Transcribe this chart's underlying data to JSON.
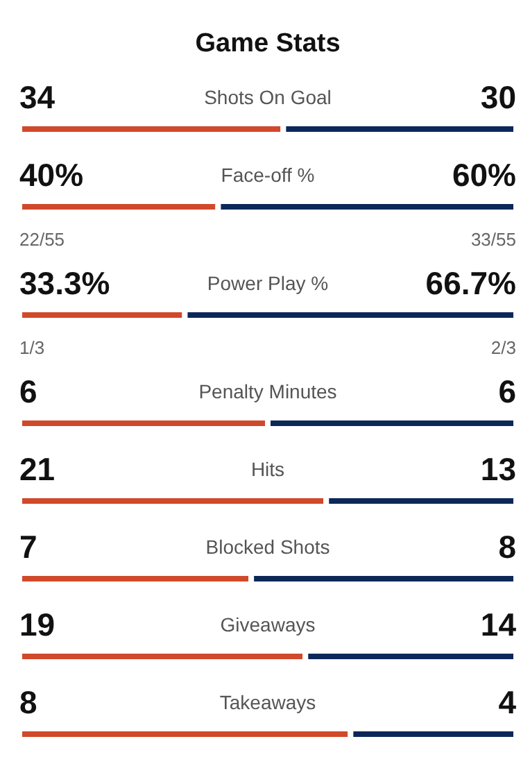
{
  "chart_data": [
    {
      "type": "bar",
      "title": "Game Stats",
      "orientation": "horizontal",
      "stacked": true,
      "tick_labels": false,
      "categories": [
        "Shots On Goal"
      ],
      "xlim": [
        0,
        64
      ],
      "series": [
        {
          "color": "#d0492a",
          "values": [
            34
          ],
          "value_labels": [
            "34"
          ]
        },
        {
          "color": "#0b2858",
          "values": [
            30
          ],
          "value_labels": [
            "30"
          ]
        }
      ]
    },
    {
      "type": "bar",
      "orientation": "horizontal",
      "stacked": true,
      "tick_labels": false,
      "categories": [
        "Face-off %"
      ],
      "xlim": [
        0,
        100
      ],
      "series": [
        {
          "color": "#d0492a",
          "values": [
            40
          ],
          "value_labels": [
            "40%"
          ]
        },
        {
          "color": "#0b2858",
          "values": [
            60
          ],
          "value_labels": [
            "60%"
          ]
        }
      ],
      "annotations": [
        "22/55",
        "33/55"
      ]
    },
    {
      "type": "bar",
      "orientation": "horizontal",
      "stacked": true,
      "tick_labels": false,
      "categories": [
        "Power Play %"
      ],
      "xlim": [
        0,
        100
      ],
      "series": [
        {
          "color": "#d0492a",
          "values": [
            33.3
          ],
          "value_labels": [
            "33.3%"
          ]
        },
        {
          "color": "#0b2858",
          "values": [
            66.7
          ],
          "value_labels": [
            "66.7%"
          ]
        }
      ],
      "annotations": [
        "1/3",
        "2/3"
      ]
    },
    {
      "type": "bar",
      "orientation": "horizontal",
      "stacked": true,
      "tick_labels": false,
      "categories": [
        "Penalty Minutes"
      ],
      "xlim": [
        0,
        12
      ],
      "series": [
        {
          "color": "#d0492a",
          "values": [
            6
          ],
          "value_labels": [
            "6"
          ]
        },
        {
          "color": "#0b2858",
          "values": [
            6
          ],
          "value_labels": [
            "6"
          ]
        }
      ]
    },
    {
      "type": "bar",
      "orientation": "horizontal",
      "stacked": true,
      "tick_labels": false,
      "categories": [
        "Hits"
      ],
      "xlim": [
        0,
        34
      ],
      "series": [
        {
          "color": "#d0492a",
          "values": [
            21
          ],
          "value_labels": [
            "21"
          ]
        },
        {
          "color": "#0b2858",
          "values": [
            13
          ],
          "value_labels": [
            "13"
          ]
        }
      ]
    },
    {
      "type": "bar",
      "orientation": "horizontal",
      "stacked": true,
      "tick_labels": false,
      "categories": [
        "Blocked Shots"
      ],
      "xlim": [
        0,
        15
      ],
      "series": [
        {
          "color": "#d0492a",
          "values": [
            7
          ],
          "value_labels": [
            "7"
          ]
        },
        {
          "color": "#0b2858",
          "values": [
            8
          ],
          "value_labels": [
            "8"
          ]
        }
      ]
    },
    {
      "type": "bar",
      "orientation": "horizontal",
      "stacked": true,
      "tick_labels": false,
      "categories": [
        "Giveaways"
      ],
      "xlim": [
        0,
        33
      ],
      "series": [
        {
          "color": "#d0492a",
          "values": [
            19
          ],
          "value_labels": [
            "19"
          ]
        },
        {
          "color": "#0b2858",
          "values": [
            14
          ],
          "value_labels": [
            "14"
          ]
        }
      ]
    },
    {
      "type": "bar",
      "orientation": "horizontal",
      "stacked": true,
      "tick_labels": false,
      "categories": [
        "Takeaways"
      ],
      "xlim": [
        0,
        12
      ],
      "series": [
        {
          "color": "#d0492a",
          "values": [
            8
          ],
          "value_labels": [
            "8"
          ]
        },
        {
          "color": "#0b2858",
          "values": [
            4
          ],
          "value_labels": [
            "4"
          ]
        }
      ]
    }
  ]
}
